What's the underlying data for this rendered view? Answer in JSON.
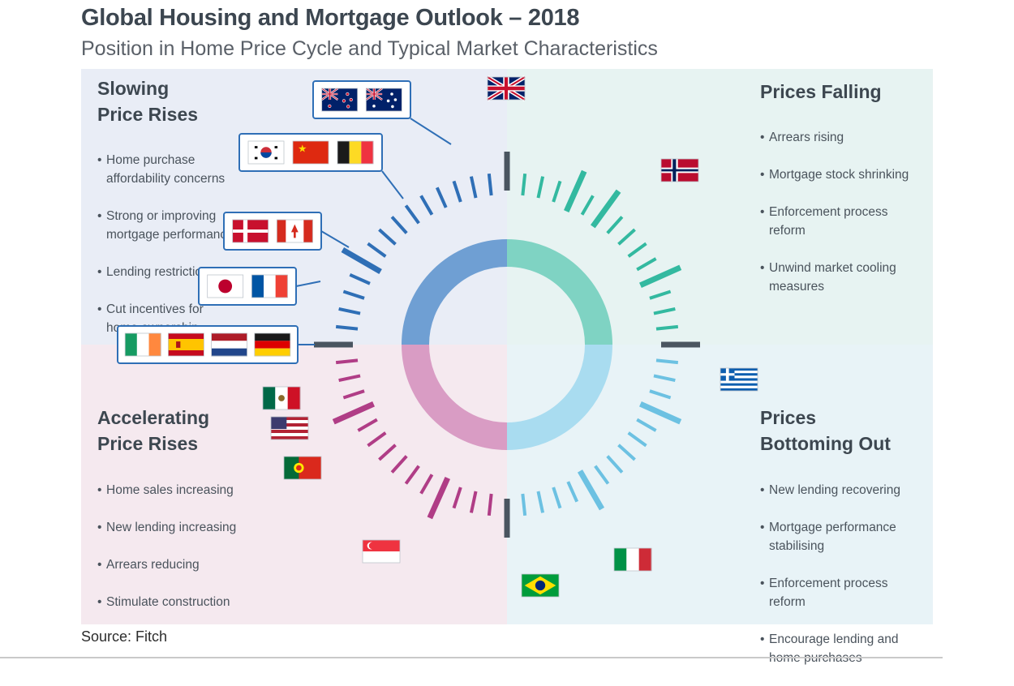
{
  "header": {
    "title": "Global Housing and Mortgage Outlook – 2018",
    "subtitle": "Position in Home Price Cycle and Typical Market Characteristics"
  },
  "quadrants": {
    "slowing": {
      "title": "Slowing\nPrice Rises",
      "items": [
        "Home purchase\naffordability concerns",
        "Strong or improving\nmortgage performance",
        "Lending restrictions",
        "Cut incentives for\nhome ownership"
      ],
      "color": "#2f6fb6"
    },
    "falling": {
      "title": "Prices Falling",
      "items": [
        "Arrears rising",
        "Mortgage stock shrinking",
        "Enforcement process\nreform",
        "Unwind market cooling\nmeasures"
      ],
      "color": "#33b9a0"
    },
    "accelerating": {
      "title": "Accelerating\nPrice Rises",
      "items": [
        "Home sales increasing",
        "New lending increasing",
        "Arrears reducing",
        "Stimulate construction"
      ],
      "color": "#b03d86"
    },
    "bottoming": {
      "title": "Prices\nBottoming Out",
      "items": [
        "New lending recovering",
        "Mortgage performance\nstabilising",
        "Enforcement process\nreform",
        "Encourage lending and\nhome purchases"
      ],
      "color": "#6cc1e2"
    }
  },
  "flag_groups": [
    {
      "flags": [
        "nz",
        "au"
      ]
    },
    {
      "flags": [
        "kr",
        "cn",
        "be"
      ]
    },
    {
      "flags": [
        "dk",
        "ca"
      ]
    },
    {
      "flags": [
        "jp",
        "fr"
      ]
    },
    {
      "flags": [
        "ie",
        "es",
        "nl",
        "de"
      ]
    }
  ],
  "single_flags": [
    "gb",
    "no",
    "gr",
    "mx",
    "us",
    "pt",
    "sg",
    "br",
    "it"
  ],
  "colors": {
    "slowing": "#2f6fb6",
    "falling": "#33b9a0",
    "accelerating": "#b03d86",
    "bottoming": "#6cc1e2",
    "divider": "#4a5560",
    "callout_border": "#2f6fb6"
  },
  "footer": {
    "source": "Source: Fitch"
  }
}
